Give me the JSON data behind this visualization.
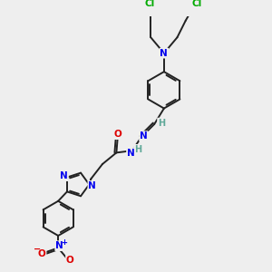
{
  "bg_color": "#eeeeee",
  "atom_colors": {
    "C": "#222222",
    "N": "#0000ee",
    "O": "#dd0000",
    "Cl": "#00aa00",
    "H": "#5fa898"
  },
  "bond_color": "#222222",
  "bond_width": 1.4,
  "figsize": [
    3.0,
    3.0
  ],
  "dpi": 100
}
